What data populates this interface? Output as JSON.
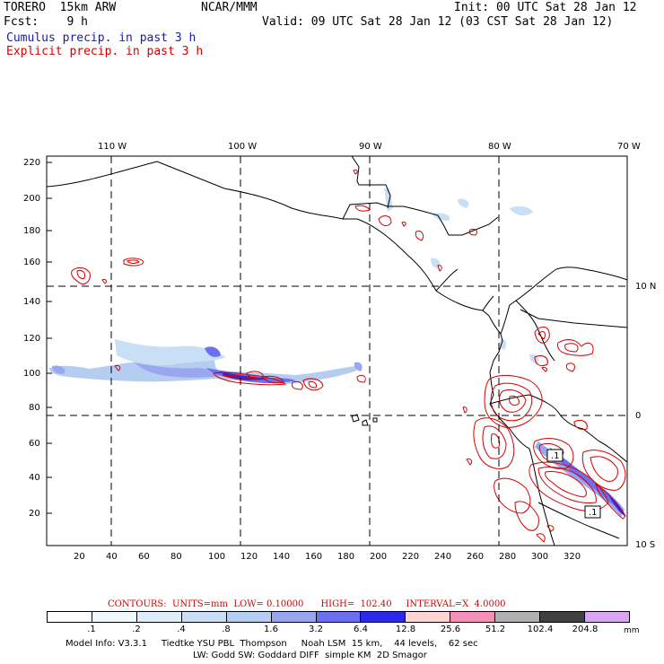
{
  "header": {
    "model": "TORERO  15km ARW",
    "org": "NCAR/MMM",
    "init": "Init: 00 UTC Sat 28 Jan 12",
    "fcst": "Fcst:    9 h",
    "valid": "Valid: 09 UTC Sat 28 Jan 12 (03 CST Sat 28 Jan 12)",
    "cumulus": "Cumulus precip. in past 3 h",
    "explicit": "Explicit precip. in past 3 h"
  },
  "map": {
    "lon_labels": [
      "110 W",
      "100 W",
      "90 W",
      "80 W",
      "70 W"
    ],
    "lat_labels": [
      "10 N",
      "0",
      "10 S"
    ],
    "y_ticks": [
      "220",
      "200",
      "180",
      "160",
      "140",
      "120",
      "100",
      "80",
      "60",
      "40",
      "20"
    ],
    "x_ticks": [
      "20",
      "40",
      "60",
      "80",
      "100",
      "120",
      "140",
      "160",
      "180",
      "200",
      "220",
      "240",
      "260",
      "280",
      "300",
      "320"
    ],
    "box_labels": [
      ".1",
      ".1"
    ]
  },
  "contours": {
    "label": "CONTOURS:  UNITS=mm  LOW= 0.10000      HIGH=  102.40     INTERVAL=X  4.0000"
  },
  "colorbar": {
    "labels": [
      ".1",
      ".2",
      ".4",
      ".8",
      "1.6",
      "3.2",
      "6.4",
      "12.8",
      "25.6",
      "51.2",
      "102.4",
      "204.8"
    ],
    "unit": "mm",
    "colors": [
      "#ffffff",
      "#f0f8ff",
      "#e0ecfa",
      "#c8dff5",
      "#b5cdf0",
      "#9aa6ef",
      "#6c6ff0",
      "#2a2ae8",
      "#ffd4d4",
      "#f590b8",
      "#b0b0b0",
      "#404040",
      "#d9a6f2"
    ]
  },
  "footer": {
    "line1": "Model Info: V3.3.1     Tiedtke YSU PBL  Thompson     Noah LSM  15 km,    44 levels,    62 sec",
    "line2": "LW: Godd SW: Goddard DIFF  simple KM  2D Smagor"
  }
}
